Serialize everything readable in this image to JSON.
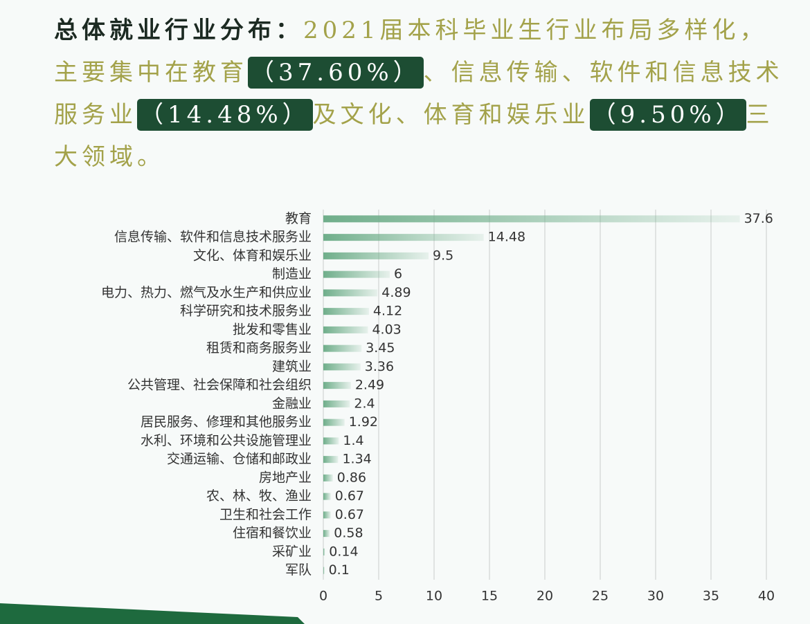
{
  "header": {
    "title": "总体就业行业分布：",
    "segments": [
      "2021届本科毕业生行业布局多样化，主要集中在教育",
      "（37.60%）",
      "、信息传输、软件和信息技术服务业",
      "（14.48%）",
      "及文化、体育和娱乐业",
      "（9.50%）",
      "三大领域。"
    ],
    "highlighted": [
      1,
      3,
      5
    ]
  },
  "chart_data": {
    "type": "hbar",
    "categories": [
      "教育",
      "信息传输、软件和信息技术服务业",
      "文化、体育和娱乐业",
      "制造业",
      "电力、热力、燃气及水生产和供应业",
      "科学研究和技术服务业",
      "批发和零售业",
      "租赁和商务服务业",
      "建筑业",
      "公共管理、社会保障和社会组织",
      "金融业",
      "居民服务、修理和其他服务业",
      "水利、环境和公共设施管理业",
      "交通运输、仓储和邮政业",
      "房地产业",
      "农、林、牧、渔业",
      "卫生和社会工作",
      "住宿和餐饮业",
      "采矿业",
      "军队"
    ],
    "values": [
      37.6,
      14.48,
      9.5,
      6,
      4.89,
      4.12,
      4.03,
      3.45,
      3.36,
      2.49,
      2.4,
      1.92,
      1.4,
      1.34,
      0.86,
      0.67,
      0.67,
      0.58,
      0.14,
      0.1
    ],
    "color": "#6fae8a",
    "xlim": [
      0,
      40
    ],
    "xticks": [
      0,
      5,
      10,
      15,
      20,
      25,
      30,
      35,
      40
    ],
    "grid": true
  }
}
